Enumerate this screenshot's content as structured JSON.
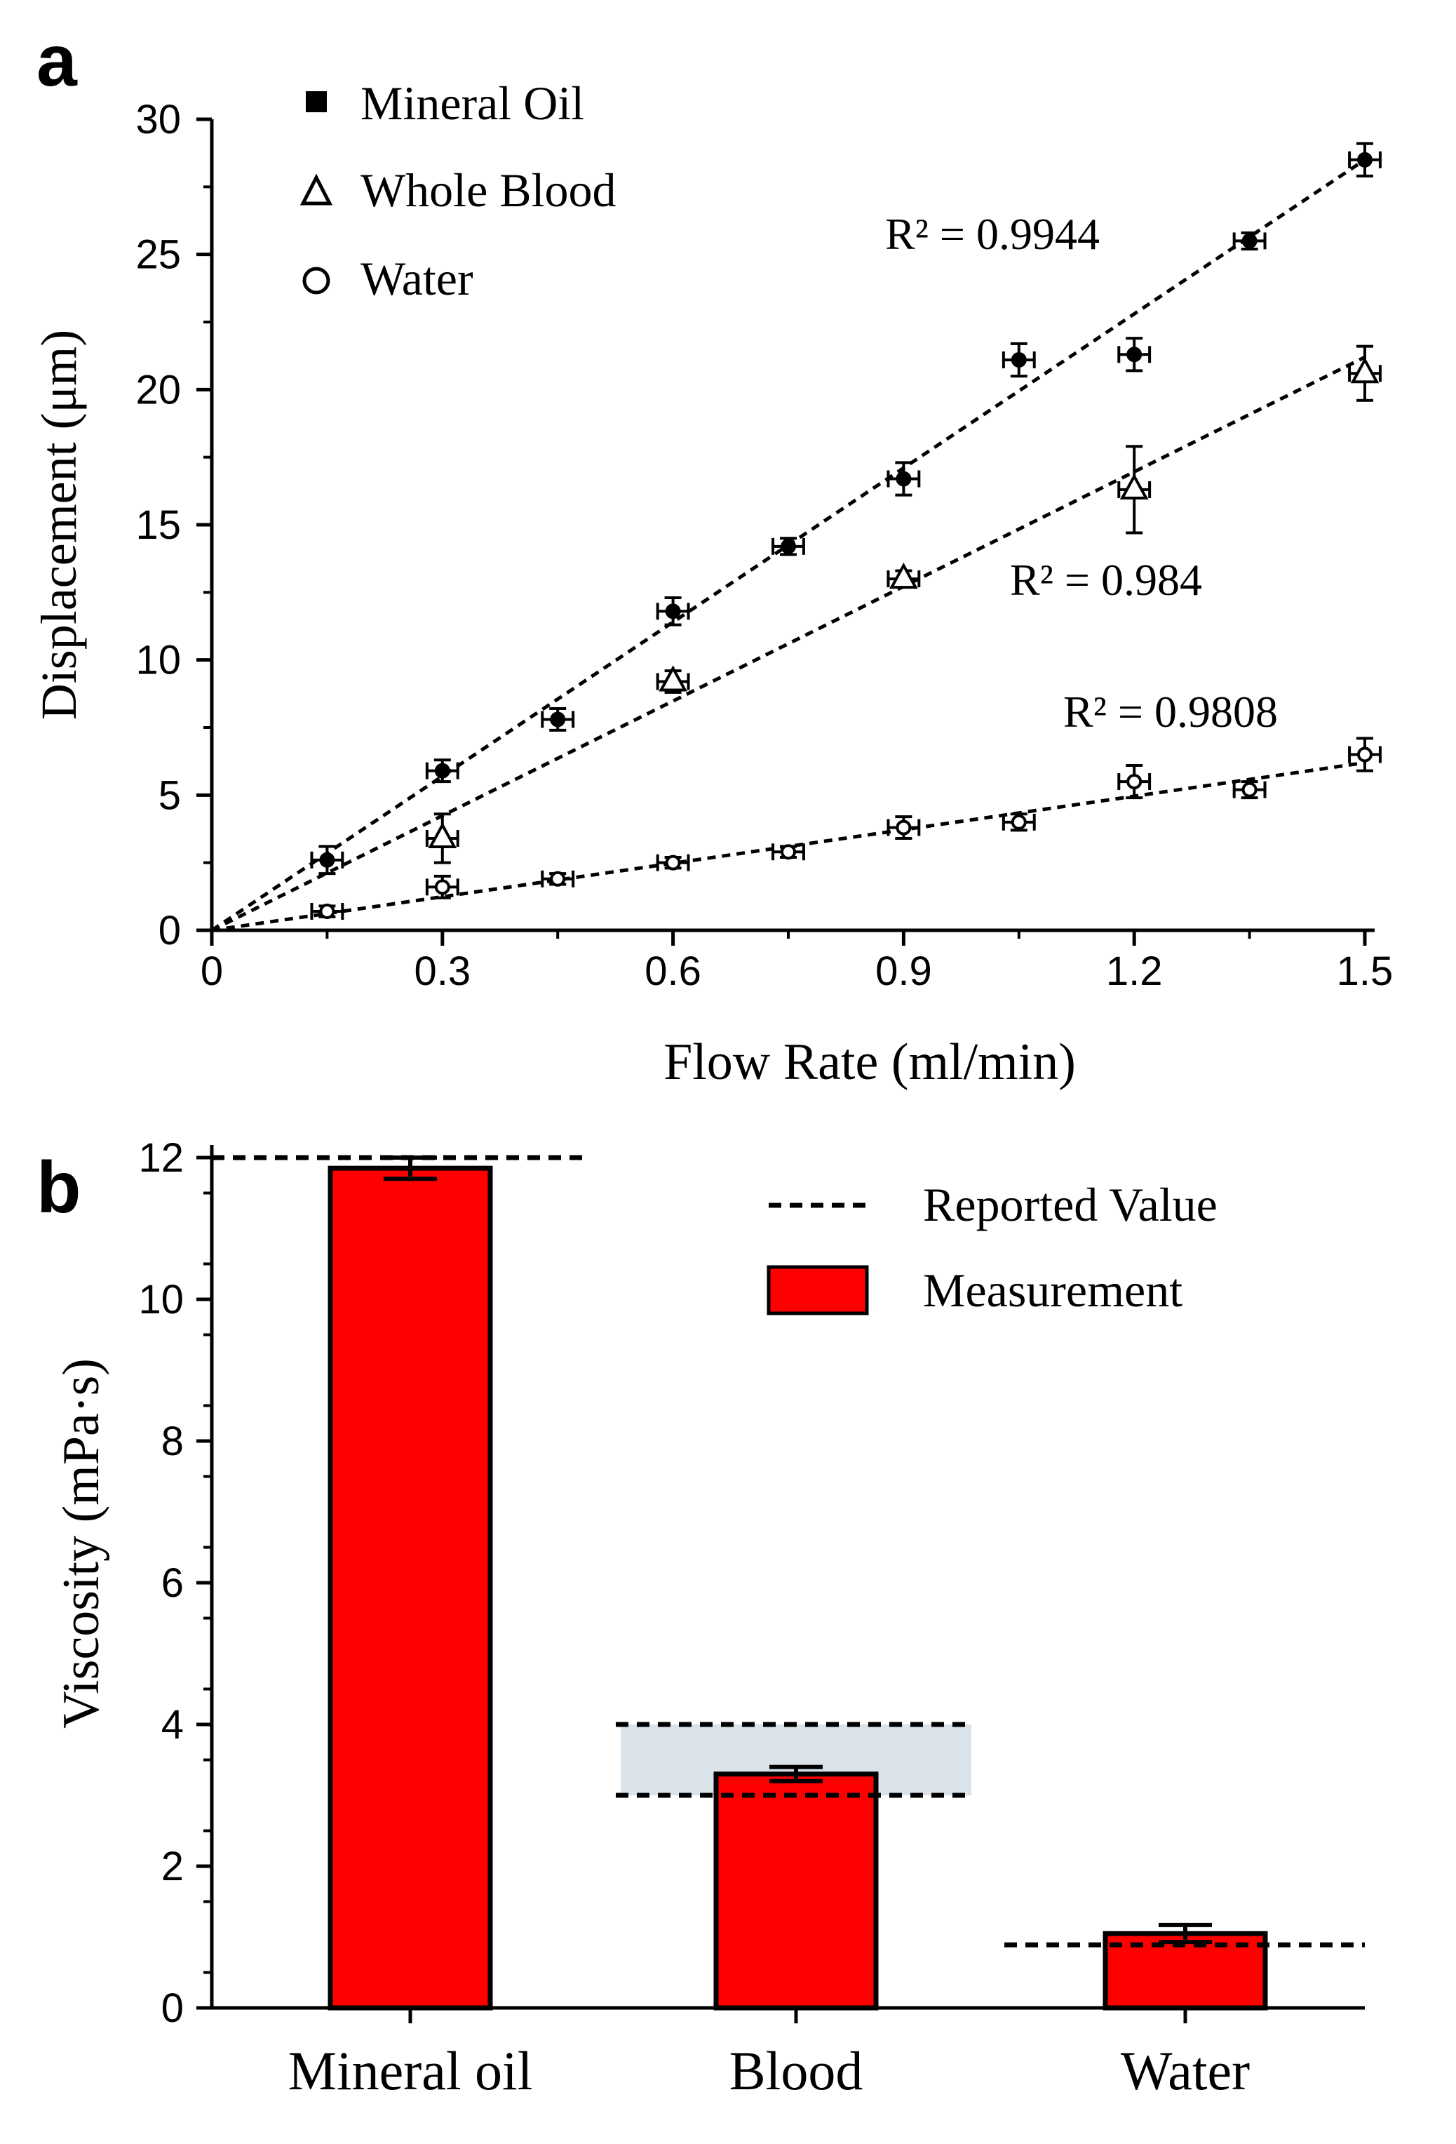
{
  "chart_data": [
    {
      "panel": "a",
      "type": "scatter",
      "xlabel": "Flow Rate (ml/min)",
      "ylabel": "Displacement (μm)",
      "xlim": [
        0,
        1.5
      ],
      "ylim": [
        0,
        30
      ],
      "x_ticks": [
        "0",
        "0.3",
        "0.6",
        "0.9",
        "1.2",
        "1.5"
      ],
      "y_ticks": [
        "0",
        "5",
        "10",
        "15",
        "20",
        "25",
        "30"
      ],
      "legend": [
        "Mineral Oil",
        "Whole Blood",
        "Water"
      ],
      "series": [
        {
          "name": "Mineral Oil",
          "marker": "filled-circle",
          "x": [
            0.15,
            0.3,
            0.45,
            0.6,
            0.75,
            0.9,
            1.05,
            1.2,
            1.35,
            1.5
          ],
          "y": [
            2.6,
            5.9,
            7.8,
            11.8,
            14.2,
            16.7,
            21.1,
            21.3,
            25.5,
            28.5
          ],
          "y_err": [
            0.5,
            0.4,
            0.4,
            0.5,
            0.3,
            0.6,
            0.6,
            0.6,
            0.3,
            0.6
          ],
          "x_err": 0.02,
          "fit_end": [
            1.5,
            28.5
          ],
          "r2_label": "R² = 0.9944"
        },
        {
          "name": "Whole Blood",
          "marker": "open-triangle",
          "x": [
            0.3,
            0.6,
            0.9,
            1.2,
            1.5
          ],
          "y": [
            3.4,
            9.2,
            13.0,
            16.3,
            20.6
          ],
          "y_err": [
            0.9,
            0.4,
            0.3,
            1.6,
            1.0
          ],
          "x_err": 0.02,
          "fit_end": [
            1.5,
            21.2
          ],
          "r2_label": "R² = 0.984"
        },
        {
          "name": "Water",
          "marker": "open-circle",
          "x": [
            0.15,
            0.3,
            0.45,
            0.6,
            0.75,
            0.9,
            1.05,
            1.2,
            1.35,
            1.5
          ],
          "y": [
            0.7,
            1.6,
            1.9,
            2.5,
            2.9,
            3.8,
            4.0,
            5.5,
            5.2,
            6.5
          ],
          "y_err": [
            0.2,
            0.4,
            0.2,
            0.2,
            0.2,
            0.4,
            0.3,
            0.6,
            0.3,
            0.6
          ],
          "x_err": 0.02,
          "fit_end": [
            1.5,
            6.2
          ],
          "r2_label": "R² = 0.9808"
        }
      ]
    },
    {
      "panel": "b",
      "type": "bar",
      "ylabel": "Viscosity (mPa·s)",
      "ylim": [
        0,
        12
      ],
      "y_ticks": [
        "0",
        "2",
        "4",
        "6",
        "8",
        "10",
        "12"
      ],
      "categories": [
        "Mineral oil",
        "Blood",
        "Water"
      ],
      "values": [
        11.85,
        3.3,
        1.05
      ],
      "errors": [
        0.15,
        0.1,
        0.12
      ],
      "bar_color": "#ff0000",
      "reported_values": [
        [
          12.0
        ],
        [
          3.0,
          4.0
        ],
        [
          0.89
        ]
      ],
      "reported_range_color": "#dbe3ea",
      "legend": [
        "Reported Value",
        "Measurement"
      ]
    }
  ]
}
